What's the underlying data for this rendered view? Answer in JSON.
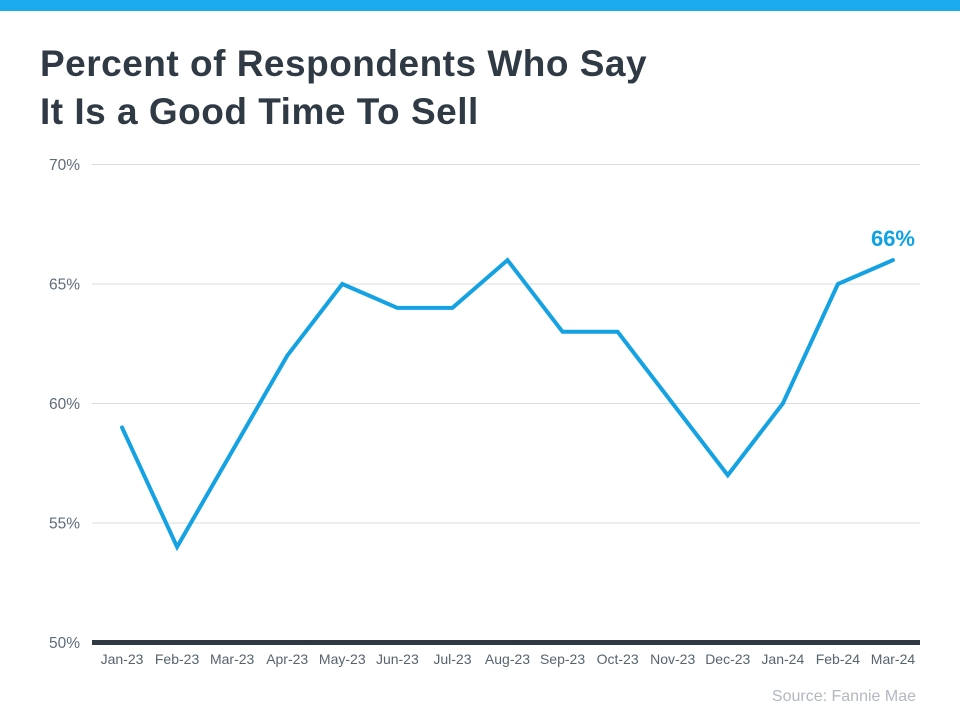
{
  "page": {
    "background": "#FFFFFF",
    "accent_bar_color": "#19ABEB"
  },
  "title": {
    "lines": [
      "Percent of Respondents Who Say",
      "It Is a Good Time To Sell"
    ]
  },
  "chart_data": {
    "type": "line",
    "title": "Percent of Respondents Who Say It Is a Good Time To Sell",
    "categories": [
      "Jan-23",
      "Feb-23",
      "Mar-23",
      "Apr-23",
      "May-23",
      "Jun-23",
      "Jul-23",
      "Aug-23",
      "Sep-23",
      "Oct-23",
      "Nov-23",
      "Dec-23",
      "Jan-24",
      "Feb-24",
      "Mar-24"
    ],
    "values": [
      59,
      54,
      58,
      62,
      65,
      64,
      64,
      66,
      63,
      63,
      60,
      57,
      60,
      65,
      66
    ],
    "ylim": [
      50,
      70
    ],
    "yticks": [
      50,
      55,
      60,
      65,
      70
    ],
    "ytick_suffix": "%",
    "grid": true,
    "legend": "none",
    "line_color": "#14A2E2",
    "gridline_color": "#DADBDC",
    "axis_line_color": "#2E3944",
    "annotation": {
      "text": "66%",
      "attached_to": "Mar-24"
    },
    "source": "Source: Fannie Mae"
  }
}
